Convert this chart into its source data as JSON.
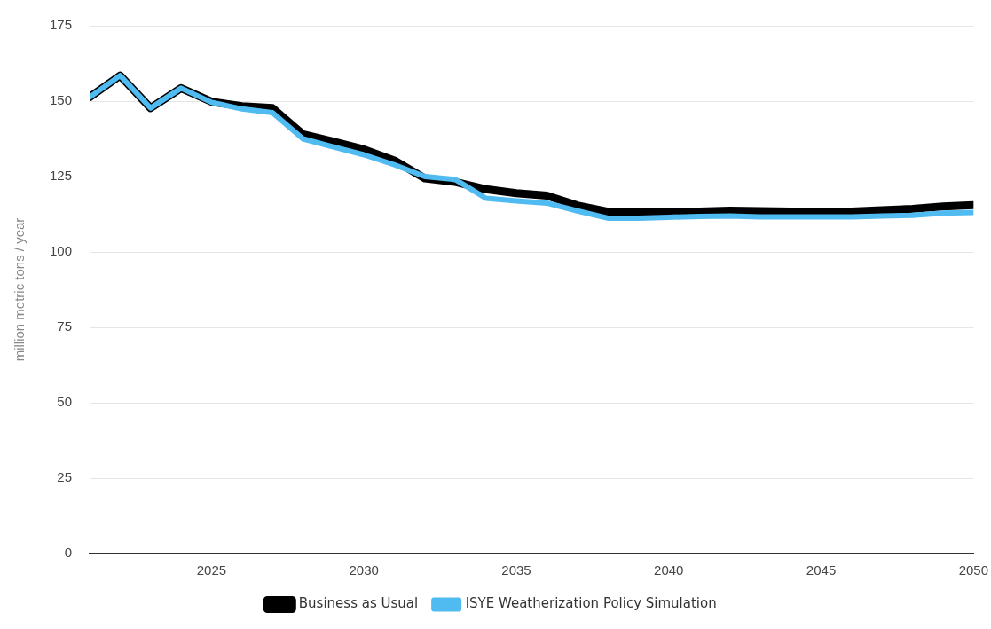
{
  "chart_data": {
    "type": "line",
    "ylabel": "million metric tons / year",
    "x": [
      2021,
      2022,
      2023,
      2024,
      2025,
      2026,
      2027,
      2028,
      2029,
      2030,
      2031,
      2032,
      2033,
      2034,
      2035,
      2036,
      2037,
      2038,
      2039,
      2040,
      2041,
      2042,
      2043,
      2044,
      2045,
      2046,
      2047,
      2048,
      2049,
      2050
    ],
    "series": [
      {
        "name": "Business as Usual",
        "color": "#000000",
        "values": [
          151.3,
          158.5,
          147.7,
          154.3,
          149.8,
          148.3,
          147.7,
          139,
          136.6,
          134,
          130.3,
          124.4,
          123.2,
          120.8,
          119.5,
          118.7,
          115.4,
          113.3,
          113.2,
          113.2,
          113.4,
          113.7,
          113.5,
          113.4,
          113.3,
          113.4,
          113.8,
          114.3,
          115.1,
          115.5
        ]
      },
      {
        "name": "ISYE Weatherization Policy Simulation",
        "color": "#4fbbf0",
        "values": [
          151.3,
          158.5,
          147.7,
          154.3,
          149.6,
          147.4,
          146.2,
          137.5,
          134.8,
          132.2,
          128.9,
          125,
          124,
          117.8,
          116.9,
          116.2,
          113.6,
          111.2,
          111.2,
          111.5,
          111.8,
          111.9,
          111.6,
          111.6,
          111.6,
          111.6,
          111.9,
          112.1,
          112.9,
          113.1
        ]
      }
    ],
    "xlim": [
      2021,
      2050
    ],
    "xticks": [
      2025,
      2030,
      2035,
      2040,
      2045,
      2050
    ],
    "ylim": [
      0,
      175
    ],
    "yticks": [
      0,
      25,
      50,
      75,
      100,
      125,
      150,
      175
    ],
    "grid": "y",
    "legend": "bottom",
    "marker": "none",
    "line_style": "solid"
  }
}
